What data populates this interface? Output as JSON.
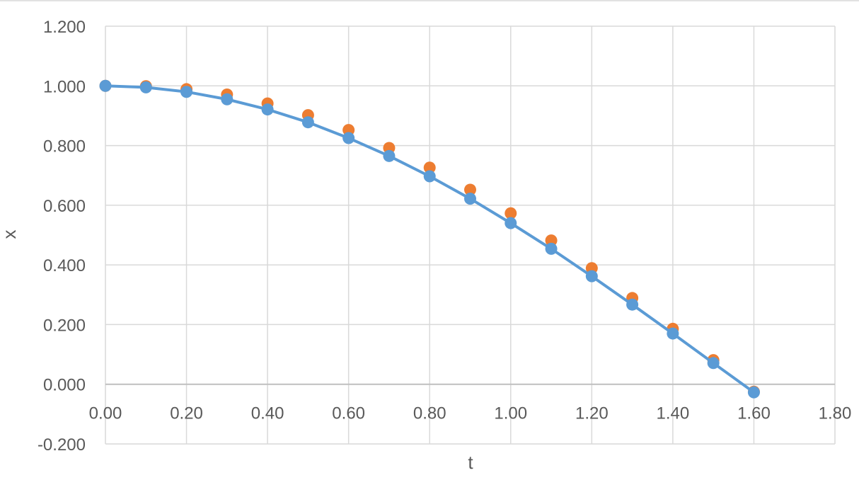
{
  "chart_data": {
    "type": "scatter",
    "xlabel": "t",
    "ylabel": "x",
    "xlim": [
      0,
      1.8
    ],
    "ylim": [
      -0.2,
      1.2
    ],
    "x_ticks": [
      "0.00",
      "0.20",
      "0.40",
      "0.60",
      "0.80",
      "1.00",
      "1.20",
      "1.40",
      "1.60",
      "1.80"
    ],
    "y_ticks": [
      "-0.200",
      "0.000",
      "0.200",
      "0.400",
      "0.600",
      "0.800",
      "1.000",
      "1.200"
    ],
    "x_tick_values": [
      0,
      0.2,
      0.4,
      0.6,
      0.8,
      1.0,
      1.2,
      1.4,
      1.6,
      1.8
    ],
    "y_tick_values": [
      -0.2,
      0,
      0.2,
      0.4,
      0.6,
      0.8,
      1.0,
      1.2
    ],
    "grid": true,
    "series": [
      {
        "color": "#ed7d31",
        "style": "markers",
        "x": [
          0.0,
          0.1,
          0.2,
          0.3,
          0.4,
          0.5,
          0.6,
          0.7,
          0.8,
          0.9,
          1.0,
          1.1,
          1.2,
          1.3,
          1.4,
          1.5,
          1.6
        ],
        "y": [
          1.0,
          0.999,
          0.989,
          0.971,
          0.941,
          0.902,
          0.852,
          0.792,
          0.726,
          0.652,
          0.573,
          0.482,
          0.389,
          0.289,
          0.186,
          0.081,
          -0.025
        ]
      },
      {
        "color": "#5b9bd5",
        "style": "line+markers",
        "x": [
          0.0,
          0.1,
          0.2,
          0.3,
          0.4,
          0.5,
          0.6,
          0.7,
          0.8,
          0.9,
          1.0,
          1.1,
          1.2,
          1.3,
          1.4,
          1.5,
          1.6
        ],
        "y": [
          1.0,
          0.995,
          0.98,
          0.955,
          0.921,
          0.878,
          0.825,
          0.765,
          0.697,
          0.622,
          0.54,
          0.454,
          0.362,
          0.267,
          0.17,
          0.071,
          -0.027
        ]
      }
    ]
  }
}
